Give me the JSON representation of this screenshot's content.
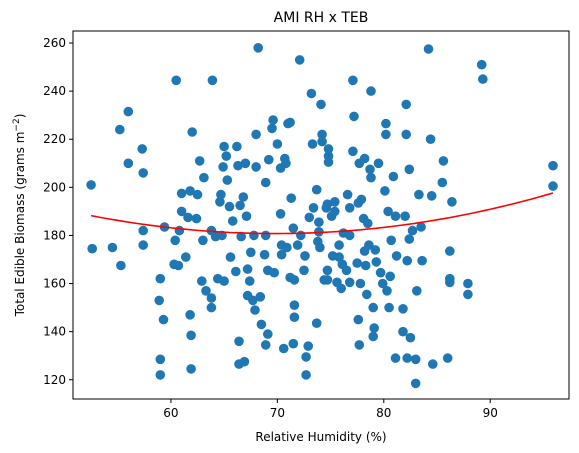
{
  "chart_data": {
    "type": "scatter",
    "title": "AMI RH x TEB",
    "xlabel": "Relative Humidity (%)",
    "ylabel_main": "Total Edible Biomass (grams m",
    "ylabel_exp": "−2",
    "ylabel_end": ")",
    "xlim": [
      50.8,
      97.4
    ],
    "ylim": [
      112,
      265
    ],
    "xticks": [
      60,
      70,
      80,
      90
    ],
    "yticks": [
      120,
      140,
      160,
      180,
      200,
      220,
      240,
      260
    ],
    "grid": false,
    "colors": {
      "points": "#1f77b4",
      "fit": "#ff0000"
    },
    "points": [
      [
        52.5,
        201
      ],
      [
        52.6,
        174.5
      ],
      [
        54.5,
        175
      ],
      [
        55.2,
        224
      ],
      [
        55.3,
        167.5
      ],
      [
        56.0,
        231.5
      ],
      [
        56.0,
        210
      ],
      [
        57.3,
        216
      ],
      [
        57.4,
        182
      ],
      [
        57.4,
        176
      ],
      [
        57.4,
        206
      ],
      [
        58.9,
        153
      ],
      [
        59.0,
        122
      ],
      [
        59.0,
        128.5
      ],
      [
        59.0,
        162
      ],
      [
        59.3,
        145
      ],
      [
        59.4,
        183.5
      ],
      [
        60.3,
        168
      ],
      [
        60.4,
        178
      ],
      [
        60.5,
        244.5
      ],
      [
        60.7,
        167.5
      ],
      [
        60.8,
        182
      ],
      [
        61.0,
        190
      ],
      [
        61.0,
        197.5
      ],
      [
        61.4,
        171
      ],
      [
        61.6,
        187.5
      ],
      [
        61.8,
        198.5
      ],
      [
        61.8,
        147
      ],
      [
        61.9,
        138.5
      ],
      [
        61.9,
        124.5
      ],
      [
        62.0,
        223
      ],
      [
        62.4,
        187
      ],
      [
        62.5,
        197
      ],
      [
        62.7,
        211
      ],
      [
        62.9,
        161
      ],
      [
        63.0,
        178
      ],
      [
        63.1,
        204
      ],
      [
        63.3,
        157
      ],
      [
        63.8,
        150
      ],
      [
        63.8,
        154
      ],
      [
        63.8,
        182
      ],
      [
        63.9,
        244.5
      ],
      [
        64.2,
        179.5
      ],
      [
        64.4,
        162
      ],
      [
        64.6,
        194
      ],
      [
        64.7,
        197
      ],
      [
        64.8,
        180
      ],
      [
        64.9,
        208.5
      ],
      [
        65.0,
        161
      ],
      [
        65.0,
        217
      ],
      [
        65.2,
        213
      ],
      [
        65.3,
        203
      ],
      [
        65.5,
        192
      ],
      [
        65.6,
        171
      ],
      [
        65.8,
        186
      ],
      [
        66.1,
        165
      ],
      [
        66.2,
        217
      ],
      [
        66.3,
        209
      ],
      [
        66.4,
        136
      ],
      [
        66.4,
        126.5
      ],
      [
        66.5,
        192.5
      ],
      [
        66.6,
        179.5
      ],
      [
        66.8,
        196
      ],
      [
        66.9,
        127.5
      ],
      [
        67.0,
        210
      ],
      [
        67.1,
        188
      ],
      [
        67.2,
        155
      ],
      [
        67.2,
        166
      ],
      [
        67.4,
        161
      ],
      [
        67.5,
        173
      ],
      [
        67.7,
        153
      ],
      [
        67.8,
        180
      ],
      [
        67.9,
        149
      ],
      [
        68.0,
        208.5
      ],
      [
        68.0,
        222
      ],
      [
        68.2,
        258
      ],
      [
        68.4,
        154.5
      ],
      [
        68.5,
        143
      ],
      [
        68.8,
        172
      ],
      [
        68.9,
        134.5
      ],
      [
        68.9,
        202
      ],
      [
        68.9,
        180
      ],
      [
        69.1,
        139
      ],
      [
        69.1,
        165.5
      ],
      [
        69.2,
        211.5
      ],
      [
        69.5,
        224.5
      ],
      [
        69.6,
        228
      ],
      [
        69.7,
        164.5
      ],
      [
        70.0,
        218
      ],
      [
        70.3,
        189
      ],
      [
        70.3,
        208
      ],
      [
        70.4,
        176
      ],
      [
        70.4,
        172
      ],
      [
        70.6,
        133
      ],
      [
        70.7,
        212
      ],
      [
        70.8,
        210
      ],
      [
        70.9,
        175
      ],
      [
        71.0,
        226.5
      ],
      [
        71.2,
        227
      ],
      [
        71.2,
        162.5
      ],
      [
        71.3,
        195.5
      ],
      [
        71.5,
        135
      ],
      [
        71.5,
        183
      ],
      [
        71.6,
        146
      ],
      [
        71.6,
        151
      ],
      [
        71.6,
        161.5
      ],
      [
        71.9,
        176
      ],
      [
        72.1,
        253
      ],
      [
        72.2,
        180
      ],
      [
        72.5,
        165.5
      ],
      [
        72.6,
        171.5
      ],
      [
        72.7,
        122
      ],
      [
        72.7,
        129.5
      ],
      [
        72.9,
        134
      ],
      [
        73.0,
        187.5
      ],
      [
        73.2,
        239
      ],
      [
        73.3,
        218
      ],
      [
        73.4,
        191.5
      ],
      [
        73.7,
        199
      ],
      [
        73.7,
        143.5
      ],
      [
        73.8,
        177.5
      ],
      [
        73.9,
        181.5
      ],
      [
        73.9,
        185.5
      ],
      [
        74.0,
        175
      ],
      [
        74.1,
        234.5
      ],
      [
        74.2,
        222
      ],
      [
        74.2,
        219
      ],
      [
        74.4,
        161.5
      ],
      [
        74.6,
        191.5
      ],
      [
        74.7,
        161.5
      ],
      [
        74.7,
        165.5
      ],
      [
        74.7,
        193
      ],
      [
        74.8,
        210.5
      ],
      [
        74.8,
        213
      ],
      [
        74.8,
        216
      ],
      [
        75.1,
        188
      ],
      [
        75.2,
        171.5
      ],
      [
        75.4,
        194
      ],
      [
        75.4,
        190
      ],
      [
        75.6,
        160.5
      ],
      [
        75.8,
        176
      ],
      [
        75.8,
        171
      ],
      [
        76.0,
        158
      ],
      [
        76.1,
        168
      ],
      [
        76.2,
        181
      ],
      [
        76.5,
        165.5
      ],
      [
        76.8,
        160.5
      ],
      [
        76.8,
        180
      ],
      [
        77.1,
        215
      ],
      [
        77.2,
        229.5
      ],
      [
        77.1,
        244.5
      ],
      [
        76.8,
        191.5
      ],
      [
        76.6,
        197
      ],
      [
        77.5,
        168.5
      ],
      [
        77.6,
        193.5
      ],
      [
        77.6,
        145
      ],
      [
        77.7,
        210
      ],
      [
        77.7,
        134.5
      ],
      [
        77.8,
        160
      ],
      [
        77.9,
        195
      ],
      [
        78.1,
        187
      ],
      [
        78.2,
        173.5
      ],
      [
        78.2,
        212
      ],
      [
        78.3,
        167.5
      ],
      [
        78.4,
        155.5
      ],
      [
        78.5,
        185
      ],
      [
        78.6,
        176
      ],
      [
        78.7,
        207.5
      ],
      [
        78.8,
        240
      ],
      [
        78.8,
        204
      ],
      [
        79.0,
        150
      ],
      [
        79.0,
        138
      ],
      [
        79.1,
        141.5
      ],
      [
        79.2,
        174
      ],
      [
        79.3,
        169
      ],
      [
        79.5,
        210
      ],
      [
        79.7,
        164.5
      ],
      [
        79.9,
        160
      ],
      [
        80.1,
        198.5
      ],
      [
        80.2,
        222
      ],
      [
        80.2,
        226.5
      ],
      [
        80.3,
        157
      ],
      [
        80.4,
        190
      ],
      [
        80.5,
        150
      ],
      [
        80.6,
        163
      ],
      [
        80.7,
        178
      ],
      [
        80.9,
        204.5
      ],
      [
        81.1,
        129
      ],
      [
        81.1,
        188
      ],
      [
        81.2,
        171.5
      ],
      [
        81.8,
        149.5
      ],
      [
        81.8,
        140
      ],
      [
        82.0,
        188
      ],
      [
        82.1,
        222
      ],
      [
        82.1,
        234.5
      ],
      [
        82.2,
        169.5
      ],
      [
        82.2,
        129
      ],
      [
        82.4,
        207.5
      ],
      [
        82.4,
        178.5
      ],
      [
        82.5,
        137.5
      ],
      [
        82.7,
        182
      ],
      [
        83.0,
        128.5
      ],
      [
        83.0,
        118.5
      ],
      [
        83.1,
        157
      ],
      [
        83.3,
        197
      ],
      [
        83.5,
        183.5
      ],
      [
        83.6,
        169.5
      ],
      [
        84.2,
        257.5
      ],
      [
        84.4,
        220
      ],
      [
        84.5,
        196.5
      ],
      [
        84.6,
        126.5
      ],
      [
        85.5,
        202
      ],
      [
        85.6,
        211
      ],
      [
        86.0,
        129
      ],
      [
        86.2,
        160.5
      ],
      [
        86.2,
        162
      ],
      [
        86.2,
        173.5
      ],
      [
        86.4,
        194
      ],
      [
        87.9,
        160
      ],
      [
        87.9,
        155.5
      ],
      [
        89.2,
        251
      ],
      [
        89.3,
        245
      ],
      [
        95.9,
        209
      ],
      [
        95.9,
        200.5
      ]
    ],
    "fit_coeffs": [
      0.02484,
      -3.4695,
      301.93
    ]
  }
}
